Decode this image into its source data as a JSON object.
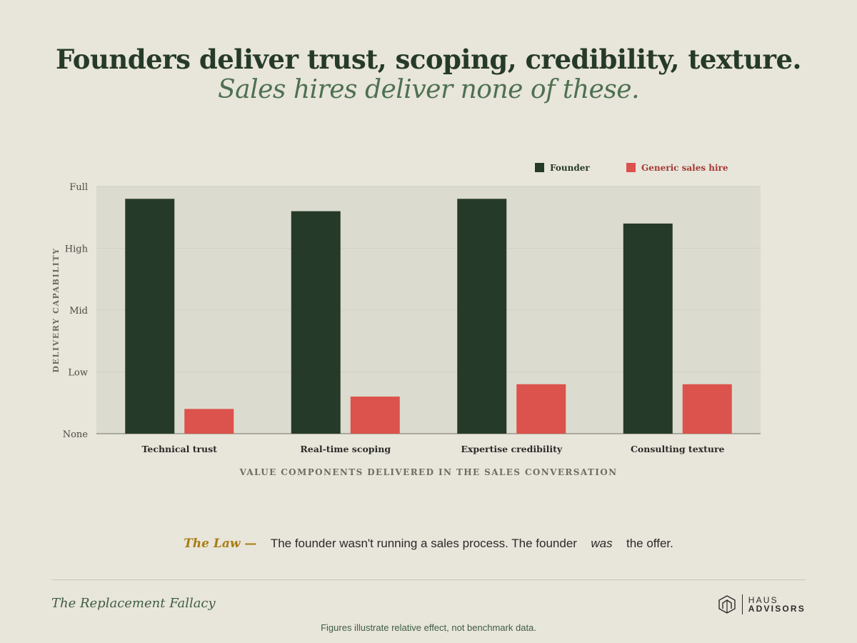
{
  "header": {
    "title": "Founders deliver trust, scoping, credibility, texture.",
    "subtitle": "Sales hires deliver none of these."
  },
  "chart_data": {
    "type": "bar",
    "categories": [
      "Technical trust",
      "Real-time scoping",
      "Expertise credibility",
      "Consulting texture"
    ],
    "series": [
      {
        "name": "Founder",
        "color": "#263a29",
        "values": [
          3.8,
          3.6,
          3.8,
          3.4
        ]
      },
      {
        "name": "Generic sales hire",
        "color": "#dc524c",
        "values": [
          0.4,
          0.6,
          0.8,
          0.8
        ]
      }
    ],
    "ylim": [
      0,
      4
    ],
    "yticks": [
      {
        "value": 0,
        "label": "None"
      },
      {
        "value": 1,
        "label": "Low"
      },
      {
        "value": 2,
        "label": "Mid"
      },
      {
        "value": 3,
        "label": "High"
      },
      {
        "value": 4,
        "label": "Full"
      }
    ],
    "ylabel": "DELIVERY CAPABILITY",
    "xlabel": "VALUE COMPONENTS DELIVERED IN THE SALES CONVERSATION",
    "legend_position": "top-right",
    "grid": true
  },
  "law": {
    "label": "The Law —",
    "text_before": "The founder wasn't running a sales process. The founder",
    "emphasis": "was",
    "text_after": "the offer."
  },
  "footer": {
    "series_name": "The Replacement Fallacy",
    "logo_line1": "HAUS",
    "logo_line2": "ADVISORS",
    "note": "Figures illustrate relative effect, not benchmark data."
  }
}
